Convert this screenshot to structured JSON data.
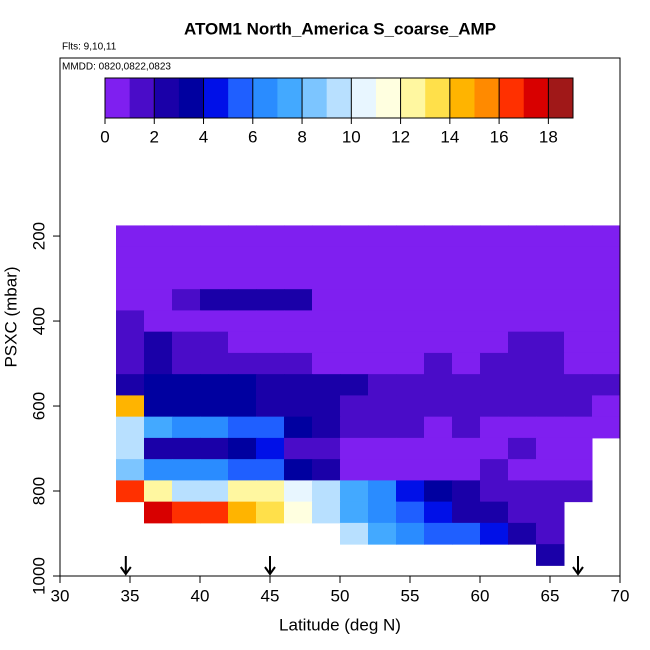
{
  "chart_data": {
    "type": "heatmap",
    "title": "ATOM1 North_America S_coarse_AMP",
    "annotations": [
      "Flts: 9,10,11",
      "MMDD: 0820,0822,0823"
    ],
    "x_label": "Latitude (deg N)",
    "y_label": "PSXC (mbar)",
    "xlim": [
      30,
      70
    ],
    "xticks": [
      30,
      35,
      40,
      45,
      50,
      55,
      60,
      65,
      70
    ],
    "ylim": [
      1000,
      -219
    ],
    "yticks": [
      200,
      400,
      600,
      800,
      1000
    ],
    "arrows": [
      34.7,
      45,
      67
    ],
    "x_edges": [
      34,
      36,
      38,
      40,
      42,
      44,
      46,
      48,
      50,
      52,
      54,
      56,
      58,
      60,
      62,
      64,
      66,
      68,
      70
    ],
    "y_edges": [
      175,
      225,
      275,
      325,
      375,
      425,
      475,
      525,
      575,
      625,
      675,
      725,
      775,
      825,
      875,
      925,
      975
    ],
    "z": [
      [
        0.5,
        0.5,
        0.5,
        0.5,
        0.5,
        0.5,
        0.5,
        0.5,
        0.5,
        0.5,
        0.5,
        0.5,
        0.5,
        0.5,
        0.5,
        0.5,
        0.5,
        0.5
      ],
      [
        0.6,
        0.5,
        0.5,
        0.7,
        0.5,
        0.6,
        0.5,
        0.5,
        0.6,
        0.5,
        0.5,
        0.6,
        0.5,
        0.5,
        0.6,
        0.5,
        0.7,
        0.5
      ],
      [
        0.8,
        0.6,
        0.7,
        0.8,
        0.6,
        0.5,
        0.6,
        0.5,
        0.6,
        0.5,
        0.7,
        0.6,
        0.5,
        0.6,
        0.5,
        0.7,
        0.6,
        0.5
      ],
      [
        0.9,
        0.8,
        1.5,
        2.6,
        2.8,
        2.6,
        2.3,
        0.9,
        0.7,
        0.6,
        0.6,
        0.7,
        0.6,
        0.8,
        0.7,
        0.6,
        0.8,
        0.6
      ],
      [
        1.2,
        0.9,
        0.8,
        0.8,
        0.7,
        0.8,
        0.7,
        0.6,
        0.8,
        0.6,
        0.7,
        0.6,
        0.8,
        0.7,
        0.6,
        0.8,
        0.7,
        0.6
      ],
      [
        1.4,
        2.5,
        1.2,
        1.0,
        0.9,
        0.8,
        0.9,
        0.8,
        0.7,
        0.8,
        0.7,
        0.9,
        0.8,
        0.7,
        1.2,
        1.4,
        0.8,
        0.6
      ],
      [
        1.6,
        2.2,
        1.4,
        1.2,
        1.1,
        1.0,
        1.1,
        0.9,
        0.8,
        0.9,
        0.8,
        1.0,
        0.9,
        1.1,
        1.5,
        1.8,
        0.9,
        0.7
      ],
      [
        2.5,
        3.3,
        3.2,
        3.1,
        3.0,
        2.8,
        2.6,
        2.4,
        2.0,
        1.9,
        1.8,
        1.6,
        1.5,
        1.4,
        1.3,
        1.4,
        1.2,
        1.0
      ],
      [
        14.5,
        3.6,
        3.4,
        3.2,
        3.1,
        2.8,
        2.6,
        2.5,
        1.9,
        1.6,
        1.5,
        1.4,
        1.3,
        1.2,
        1.2,
        1.1,
        1.0,
        0.9
      ],
      [
        9.2,
        7.4,
        6.4,
        6.2,
        5.8,
        5.2,
        3.2,
        2.6,
        1.4,
        1.2,
        1.0,
        0.9,
        1.0,
        0.8,
        0.9,
        0.8,
        0.9,
        0.8
      ],
      [
        9.3,
        2.8,
        2.7,
        2.9,
        3.5,
        4.2,
        1.2,
        1.0,
        0.9,
        0.8,
        0.9,
        0.8,
        0.9,
        0.8,
        1.0,
        0.9,
        0.8,
        null
      ],
      [
        8.6,
        6.6,
        6.5,
        6.3,
        5.6,
        5.2,
        3.4,
        2.9,
        0.9,
        0.8,
        0.9,
        0.8,
        0.9,
        1.0,
        0.9,
        0.8,
        0.7,
        null
      ],
      [
        16.4,
        12.3,
        9.5,
        9.3,
        12.4,
        12.8,
        10.2,
        9.6,
        7.3,
        6.2,
        4.5,
        3.6,
        2.4,
        1.3,
        1.1,
        1.0,
        1.2,
        null
      ],
      [
        null,
        17.5,
        16.5,
        16.2,
        14.6,
        13.2,
        11.4,
        9.6,
        7.4,
        6.6,
        5.3,
        4.8,
        2.6,
        2.2,
        1.0,
        1.1,
        null,
        null
      ],
      [
        null,
        null,
        null,
        null,
        null,
        null,
        null,
        null,
        9.4,
        7.8,
        6.2,
        5.9,
        5.3,
        4.8,
        2.4,
        1.9,
        null,
        null
      ],
      [
        null,
        null,
        null,
        null,
        null,
        null,
        null,
        null,
        null,
        null,
        null,
        null,
        null,
        null,
        null,
        2.6,
        null,
        null
      ]
    ],
    "colorbar": {
      "levels": [
        0,
        1,
        2,
        3,
        4,
        5,
        6,
        7,
        8,
        9,
        10,
        11,
        12,
        13,
        14,
        15,
        16,
        17,
        18,
        19
      ],
      "colors": [
        "#7f1ff0",
        "#4a0cc8",
        "#1a00a8",
        "#0000a0",
        "#0010e8",
        "#1f5fff",
        "#2a8cff",
        "#43a9ff",
        "#7cc5ff",
        "#b8e0ff",
        "#e8f6ff",
        "#ffffe0",
        "#fff7a0",
        "#ffe04a",
        "#ffb400",
        "#ff8a00",
        "#ff3000",
        "#d80000",
        "#a01818"
      ],
      "ticks": [
        0,
        2,
        4,
        6,
        8,
        10,
        12,
        14,
        16,
        18
      ]
    }
  }
}
